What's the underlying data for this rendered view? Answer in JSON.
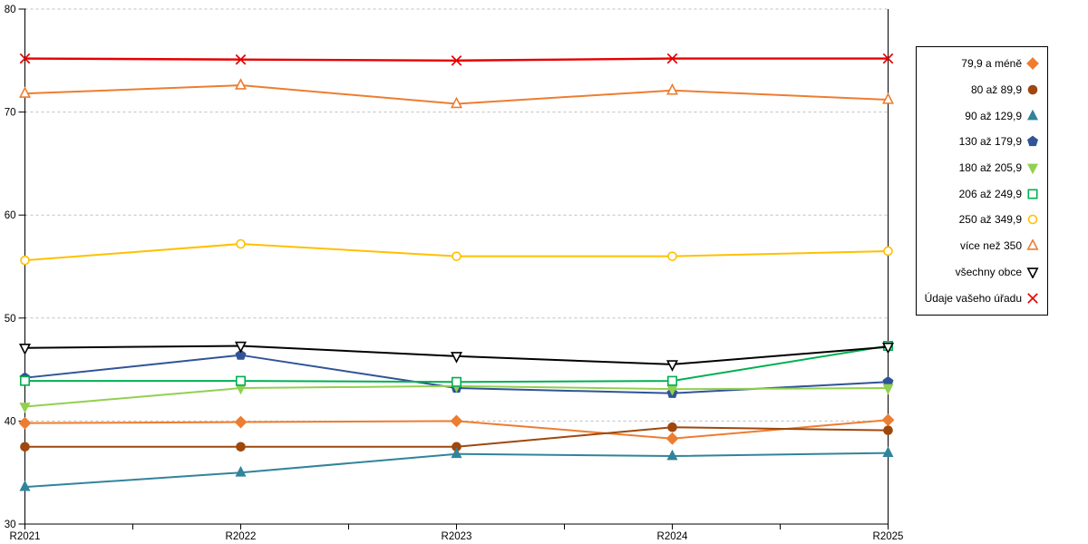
{
  "chart_data": {
    "type": "line",
    "title": "",
    "categories": [
      "R2021",
      "R2022",
      "R2023",
      "R2024",
      "R2025"
    ],
    "ylim": [
      30,
      80
    ],
    "ytick_step": 10,
    "ytick_labels": [
      "30",
      "40",
      "50",
      "60",
      "70",
      "80"
    ],
    "grid": "horizontal-dashed",
    "grid_color": "#BFBFBF",
    "axis_color": "#000000",
    "background_color": "#FFFFFF",
    "x_minor_ticks": true,
    "legend_position": "right",
    "series": [
      {
        "name": "79,9 a méně",
        "color": "#ED7D31",
        "marker": "diamond",
        "fill": "solid",
        "values": [
          39.8,
          39.9,
          40.0,
          38.3,
          40.1
        ]
      },
      {
        "name": "80 až 89,9",
        "color": "#9E480E",
        "marker": "circle",
        "fill": "solid",
        "values": [
          37.5,
          37.5,
          37.5,
          39.4,
          39.1
        ]
      },
      {
        "name": "90 až 129,9",
        "color": "#31849B",
        "marker": "triangle-up",
        "fill": "solid",
        "values": [
          33.6,
          35.0,
          36.8,
          36.6,
          36.9
        ]
      },
      {
        "name": "130 až 179,9",
        "color": "#305496",
        "marker": "pentagon",
        "fill": "solid",
        "values": [
          44.2,
          46.4,
          43.2,
          42.7,
          43.8
        ]
      },
      {
        "name": "180 až 205,9",
        "color": "#92D050",
        "marker": "triangle-down",
        "fill": "solid",
        "values": [
          41.4,
          43.2,
          43.4,
          43.1,
          43.2
        ]
      },
      {
        "name": "206 až 249,9",
        "color": "#00B050",
        "marker": "square",
        "fill": "hollow",
        "values": [
          43.9,
          43.9,
          43.8,
          43.9,
          47.3
        ]
      },
      {
        "name": "250 až 349,9",
        "color": "#FFC000",
        "marker": "circle",
        "fill": "hollow",
        "values": [
          55.6,
          57.2,
          56.0,
          56.0,
          56.5
        ]
      },
      {
        "name": "více než 350",
        "color": "#ED7D31",
        "marker": "triangle-up",
        "fill": "hollow",
        "values": [
          71.8,
          72.6,
          70.8,
          72.1,
          71.2
        ]
      },
      {
        "name": "všechny obce",
        "color": "#000000",
        "marker": "triangle-down",
        "fill": "hollow",
        "values": [
          47.1,
          47.3,
          46.3,
          45.5,
          47.2
        ]
      },
      {
        "name": "Údaje vašeho úřadu",
        "color": "#E60000",
        "marker": "x",
        "fill": "line",
        "values": [
          75.2,
          75.1,
          75.0,
          75.2,
          75.2
        ]
      }
    ]
  }
}
